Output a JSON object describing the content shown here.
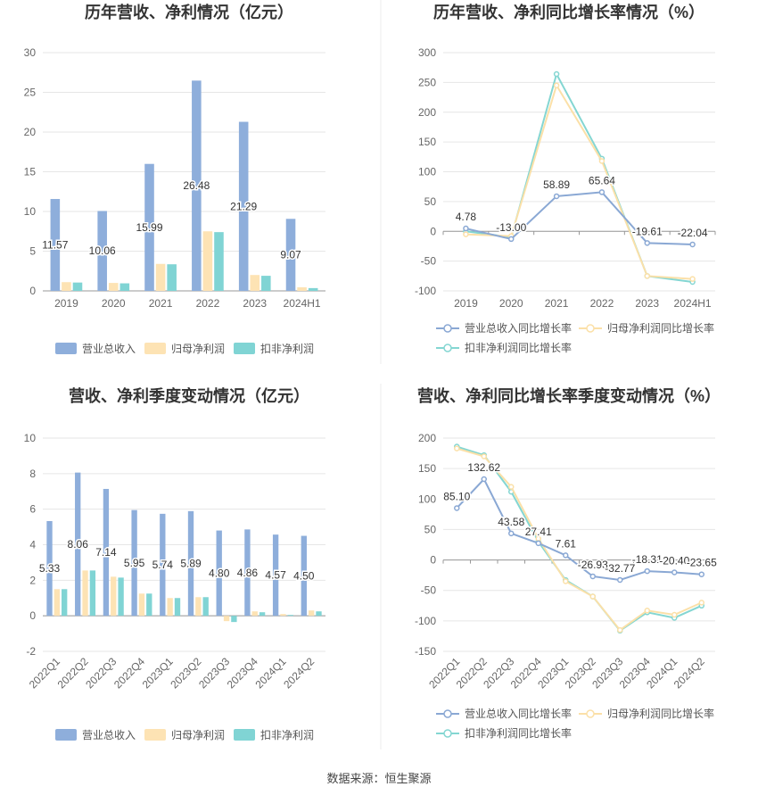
{
  "source": {
    "label": "数据来源：",
    "name": "恒生聚源"
  },
  "chart_data": [
    {
      "type": "bar",
      "title": "历年营收、净利情况（亿元）",
      "categories": [
        "2019",
        "2020",
        "2021",
        "2022",
        "2023",
        "2024H1"
      ],
      "ylim": [
        0,
        30
      ],
      "yticks": [
        0,
        5,
        10,
        15,
        20,
        25,
        30
      ],
      "series": [
        {
          "name": "营业总收入",
          "values": [
            11.57,
            10.06,
            15.99,
            26.48,
            21.29,
            9.07
          ],
          "labels": [
            "11.57",
            "10.06",
            "15.99",
            "26.48",
            "21.29",
            "9.07"
          ],
          "color": "#8eaedb"
        },
        {
          "name": "归母净利润",
          "values": [
            1.1,
            1.0,
            3.4,
            7.5,
            2.0,
            0.45
          ],
          "color": "#fde3b4"
        },
        {
          "name": "扣非净利润",
          "values": [
            1.05,
            0.95,
            3.35,
            7.4,
            1.9,
            0.35
          ],
          "color": "#80d4d4"
        }
      ],
      "legend": "bottom",
      "grid": true
    },
    {
      "type": "line",
      "title": "历年营收、净利同比增长率情况（%）",
      "categories": [
        "2019",
        "2020",
        "2021",
        "2022",
        "2023",
        "2024H1"
      ],
      "ylim": [
        -100,
        300
      ],
      "yticks": [
        -100,
        -50,
        0,
        50,
        100,
        150,
        200,
        250,
        300
      ],
      "series": [
        {
          "name": "营业总收入同比增长率",
          "values": [
            4.78,
            -13.0,
            58.89,
            65.64,
            -19.61,
            -22.04
          ],
          "labels": [
            "4.78",
            "-13.00",
            "58.89",
            "65.64",
            "-19.61",
            "-22.04"
          ],
          "color": "#8aa8d4"
        },
        {
          "name": "归母净利润同比增长率",
          "values": [
            -5,
            -8,
            245,
            118,
            -75,
            -80
          ],
          "color": "#fbe0a8"
        },
        {
          "name": "扣非净利润同比增长率",
          "values": [
            0,
            -10,
            264,
            122,
            -75,
            -85
          ],
          "color": "#84d6d2"
        }
      ],
      "legend": "bottom",
      "grid": true
    },
    {
      "type": "bar",
      "title": "营收、净利季度变动情况（亿元）",
      "categories": [
        "2022Q1",
        "2022Q2",
        "2022Q3",
        "2022Q4",
        "2023Q1",
        "2023Q2",
        "2023Q3",
        "2023Q4",
        "2024Q1",
        "2024Q2"
      ],
      "ylim": [
        -2,
        10
      ],
      "yticks": [
        -2,
        0,
        2,
        4,
        6,
        8,
        10
      ],
      "series": [
        {
          "name": "营业总收入",
          "values": [
            5.33,
            8.06,
            7.14,
            5.95,
            5.74,
            5.89,
            4.8,
            4.86,
            4.57,
            4.5
          ],
          "labels": [
            "5.33",
            "8.06",
            "7.14",
            "5.95",
            "5.74",
            "5.89",
            "4.80",
            "4.86",
            "4.57",
            "4.50"
          ],
          "color": "#8eaedb"
        },
        {
          "name": "归母净利润",
          "values": [
            1.5,
            2.55,
            2.2,
            1.25,
            1.0,
            1.05,
            -0.3,
            0.25,
            0.1,
            0.3
          ],
          "color": "#fde3b4"
        },
        {
          "name": "扣非净利润",
          "values": [
            1.5,
            2.55,
            2.15,
            1.25,
            1.0,
            1.05,
            -0.35,
            0.2,
            0.05,
            0.25
          ],
          "color": "#80d4d4"
        }
      ],
      "legend": "bottom",
      "grid": true
    },
    {
      "type": "line",
      "title": "营收、净利同比增长率季度变动情况（%）",
      "categories": [
        "2022Q1",
        "2022Q2",
        "2022Q3",
        "2022Q4",
        "2023Q1",
        "2023Q2",
        "2023Q3",
        "2023Q4",
        "2024Q1",
        "2024Q2"
      ],
      "ylim": [
        -150,
        200
      ],
      "yticks": [
        -150,
        -100,
        -50,
        0,
        50,
        100,
        150,
        200
      ],
      "series": [
        {
          "name": "营业总收入同比增长率",
          "values": [
            85.1,
            132.62,
            43.58,
            27.41,
            7.61,
            -26.93,
            -32.77,
            -18.31,
            -20.4,
            -23.65
          ],
          "labels": [
            "85.10",
            "132.62",
            "43.58",
            "27.41",
            "7.61",
            "-26.93",
            "-32.77",
            "-18.31",
            "-20.40",
            "-23.65"
          ],
          "color": "#8aa8d4"
        },
        {
          "name": "归母净利润同比增长率",
          "values": [
            183,
            170,
            120,
            35,
            -35,
            -60,
            -115,
            -83,
            -90,
            -70
          ],
          "color": "#fbe0a8"
        },
        {
          "name": "扣非净利润同比增长率",
          "values": [
            186,
            172,
            112,
            30,
            -33,
            -60,
            -116,
            -86,
            -95,
            -75
          ],
          "color": "#84d6d2"
        }
      ],
      "legend": "bottom",
      "grid": true
    }
  ]
}
